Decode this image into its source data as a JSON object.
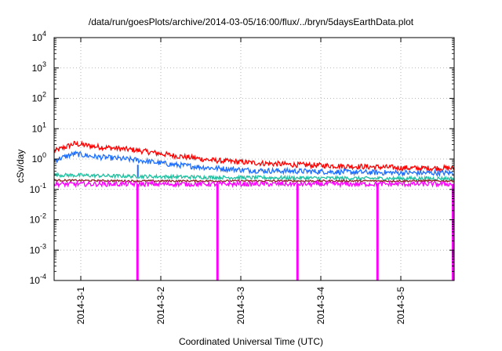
{
  "chart_data": {
    "type": "line",
    "title": "/data/run/goesPlots/archive/2014-03-05/16:00/flux/../bryn/5daysEarthData.plot",
    "xlabel": "Coordinated Universal Time (UTC)",
    "ylabel": "cSv/day",
    "y_scale": "log",
    "ylim": [
      0.0001,
      10000
    ],
    "y_ticks": [
      {
        "base": "10",
        "exp": "-4"
      },
      {
        "base": "10",
        "exp": "-3"
      },
      {
        "base": "10",
        "exp": "-2"
      },
      {
        "base": "10",
        "exp": "-1"
      },
      {
        "base": "10",
        "exp": "0"
      },
      {
        "base": "10",
        "exp": "1"
      },
      {
        "base": "10",
        "exp": "2"
      },
      {
        "base": "10",
        "exp": "3"
      },
      {
        "base": "10",
        "exp": "4"
      }
    ],
    "xlim": [
      "2014-02-28T16:00",
      "2014-03-05T16:00"
    ],
    "x_ticks": [
      "2014-3-1",
      "2014-3-2",
      "2014-3-3",
      "2014-3-4",
      "2014-3-5"
    ],
    "grid": true,
    "legend": "none",
    "series": [
      {
        "color": "#ff0000",
        "x": [
          "2014-02-28T16:00",
          "2014-02-28T22:00",
          "2014-03-01T04:00",
          "2014-03-01T16:00",
          "2014-03-02T04:00",
          "2014-03-02T16:00",
          "2014-03-03T04:00",
          "2014-03-03T16:00",
          "2014-03-04T04:00",
          "2014-03-04T16:00",
          "2014-03-05T04:00",
          "2014-03-05T16:00"
        ],
        "values": [
          1.8,
          3.2,
          2.6,
          2.0,
          1.3,
          0.9,
          0.75,
          0.65,
          0.6,
          0.55,
          0.5,
          0.5
        ]
      },
      {
        "color": "#1e6eff",
        "x": [
          "2014-02-28T16:00",
          "2014-02-28T22:00",
          "2014-03-01T04:00",
          "2014-03-01T16:00",
          "2014-03-02T04:00",
          "2014-03-02T16:00",
          "2014-03-03T04:00",
          "2014-03-03T16:00",
          "2014-03-04T04:00",
          "2014-03-04T16:00",
          "2014-03-05T04:00",
          "2014-03-05T16:00"
        ],
        "values": [
          0.9,
          1.5,
          1.2,
          0.95,
          0.65,
          0.5,
          0.42,
          0.4,
          0.38,
          0.36,
          0.35,
          0.35
        ]
      },
      {
        "color": "#20c0a0",
        "x": [
          "2014-02-28T16:00",
          "2014-03-01T16:00",
          "2014-03-02T16:00",
          "2014-03-03T16:00",
          "2014-03-04T16:00",
          "2014-03-05T16:00"
        ],
        "values": [
          0.3,
          0.27,
          0.25,
          0.24,
          0.23,
          0.23
        ]
      },
      {
        "color": "#8b2020",
        "x": [
          "2014-02-28T16:00",
          "2014-03-01T16:00",
          "2014-03-02T16:00",
          "2014-03-03T16:00",
          "2014-03-04T16:00",
          "2014-03-05T16:00"
        ],
        "values": [
          0.2,
          0.19,
          0.19,
          0.19,
          0.19,
          0.19
        ]
      },
      {
        "color": "#ff00ff",
        "x": [
          "2014-02-28T16:00",
          "2014-03-01T16:00",
          "2014-03-02T16:00",
          "2014-03-03T16:00",
          "2014-03-04T16:00",
          "2014-03-05T16:00"
        ],
        "values": [
          0.15,
          0.15,
          0.15,
          0.15,
          0.15,
          0.15
        ]
      }
    ],
    "dropouts": {
      "color": "#ff00ff",
      "x": [
        "2014-03-01T17:00",
        "2014-03-02T17:00",
        "2014-03-03T17:00",
        "2014-03-04T17:00",
        "2014-03-05T16:00"
      ],
      "min_value": 0.0001
    }
  }
}
